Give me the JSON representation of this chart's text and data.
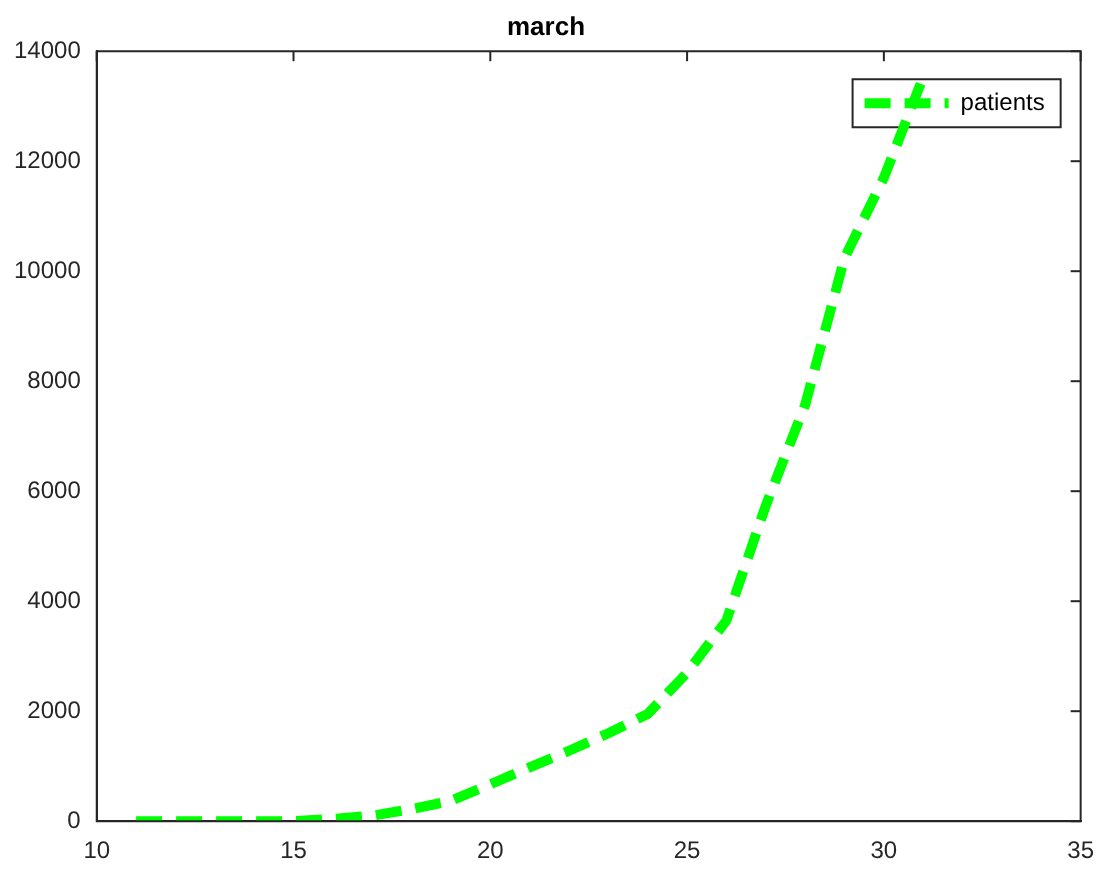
{
  "chart_data": {
    "type": "line",
    "title": "march",
    "x": [
      11,
      12,
      13,
      14,
      15,
      16,
      17,
      18,
      19,
      20,
      21,
      22,
      23,
      24,
      25,
      26,
      27,
      28,
      29,
      30,
      31
    ],
    "series": [
      {
        "name": "patients",
        "color": "#00ff00",
        "values": [
          0,
          0,
          0,
          0,
          0,
          40,
          100,
          220,
          370,
          670,
          980,
          1280,
          1600,
          1950,
          2700,
          3650,
          5740,
          7570,
          10240,
          11700,
          13530
        ]
      }
    ],
    "xlim": [
      10,
      35
    ],
    "xticks": [
      10,
      15,
      20,
      25,
      30,
      35
    ],
    "ylim": [
      0,
      14000
    ],
    "yticks": [
      0,
      2000,
      4000,
      6000,
      8000,
      10000,
      12000,
      14000
    ],
    "grid": false,
    "legend": "top right",
    "line_style": "dashed",
    "marker": "none"
  }
}
